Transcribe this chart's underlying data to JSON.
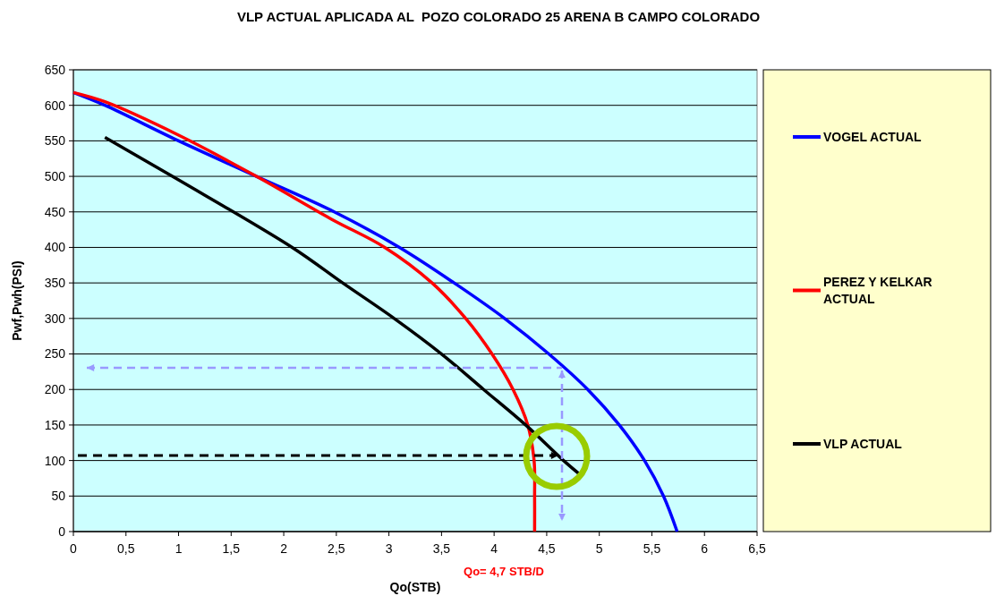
{
  "chart_data": {
    "type": "line",
    "title": "VLP ACTUAL APLICADA AL  POZO COLORADO 25 ARENA B CAMPO COLORADO",
    "xlabel": "Qo(STB)",
    "ylabel": "Pwf,Pwh(PSI)",
    "annotations": [
      "Qo= 4,7 STB/D"
    ],
    "xlim": [
      0,
      6.5
    ],
    "xticks": [
      0,
      {
        "value": 0.5,
        "label": "0,5"
      },
      1,
      {
        "value": 1.5,
        "label": "1,5"
      },
      2,
      {
        "value": 2.5,
        "label": "2,5"
      },
      3,
      {
        "value": 3.5,
        "label": "3,5"
      },
      4,
      {
        "value": 4.5,
        "label": "4,5"
      },
      5,
      {
        "value": 5.5,
        "label": "5,5"
      },
      6,
      {
        "value": 6.5,
        "label": "6,5"
      }
    ],
    "ylim": [
      0,
      650
    ],
    "yticks": [
      0,
      50,
      100,
      150,
      200,
      250,
      300,
      350,
      400,
      450,
      500,
      550,
      600,
      650
    ],
    "grid": "y",
    "legend": "right",
    "marker": "none",
    "series": [
      {
        "name": "VOGEL ACTUAL",
        "color": "#0000ff",
        "x": [
          0,
          0.3,
          1.0,
          1.74,
          2.48,
          3.1,
          3.62,
          4.1,
          4.52,
          4.89,
          5.19,
          5.43,
          5.61,
          5.74
        ],
        "values": [
          618,
          600,
          550,
          500,
          450,
          400,
          350,
          300,
          250,
          200,
          150,
          100,
          50,
          0
        ]
      },
      {
        "name": "PEREZ Y KELKAR ACTUAL",
        "color": "#ff0000",
        "x": [
          0,
          0.3,
          1.0,
          1.74,
          2.45,
          2.96,
          3.41,
          3.73,
          3.98,
          4.18,
          4.32,
          4.38,
          4.385,
          4.385
        ],
        "values": [
          618,
          605,
          558,
          500,
          440,
          400,
          350,
          300,
          250,
          200,
          150,
          100,
          50,
          0
        ]
      },
      {
        "name": "VLP ACTUAL",
        "color": "#000000",
        "x": [
          0.3,
          1.0,
          2.08,
          2.56,
          3.05,
          3.5,
          3.9,
          4.3,
          4.66,
          4.81
        ],
        "values": [
          555,
          495,
          400,
          350,
          300,
          250,
          200,
          150,
          100,
          81
        ]
      }
    ]
  }
}
